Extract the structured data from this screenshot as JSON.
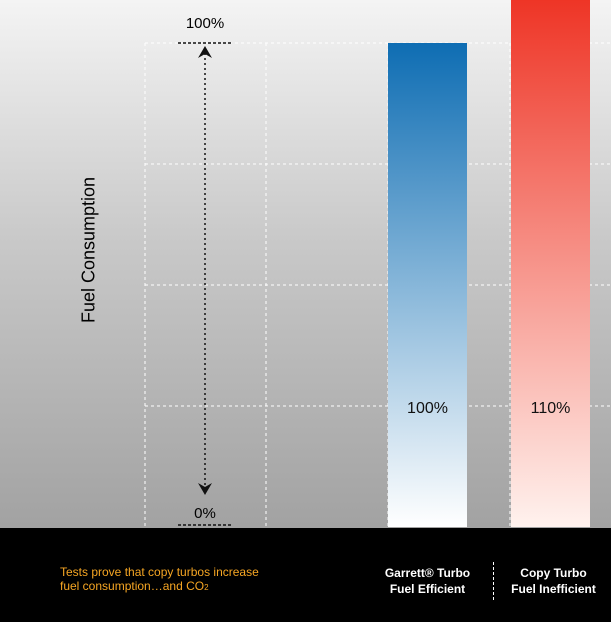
{
  "chart_data": {
    "type": "bar",
    "ylabel": "Fuel Consumption",
    "y_tick_labels": [
      "100%",
      "0%"
    ],
    "categories": [
      {
        "name": "Garrett® Turbo",
        "subtitle": "Fuel Efficient"
      },
      {
        "name": "Copy Turbo",
        "subtitle": "Fuel Inefficient"
      }
    ],
    "values": [
      100,
      110
    ],
    "data_labels": [
      "100%",
      "110%"
    ],
    "ylim": [
      0,
      110
    ],
    "grid": true,
    "colors": {
      "garrett_top": "#0e6db3",
      "garrett_bottom": "#ffffff",
      "copy_top": "#ee3324",
      "copy_bottom": "#fff2ee"
    }
  },
  "footnote": {
    "line1": "Tests prove that copy turbos increase",
    "line2": "fuel consumption…and CO",
    "subscript": "2"
  }
}
